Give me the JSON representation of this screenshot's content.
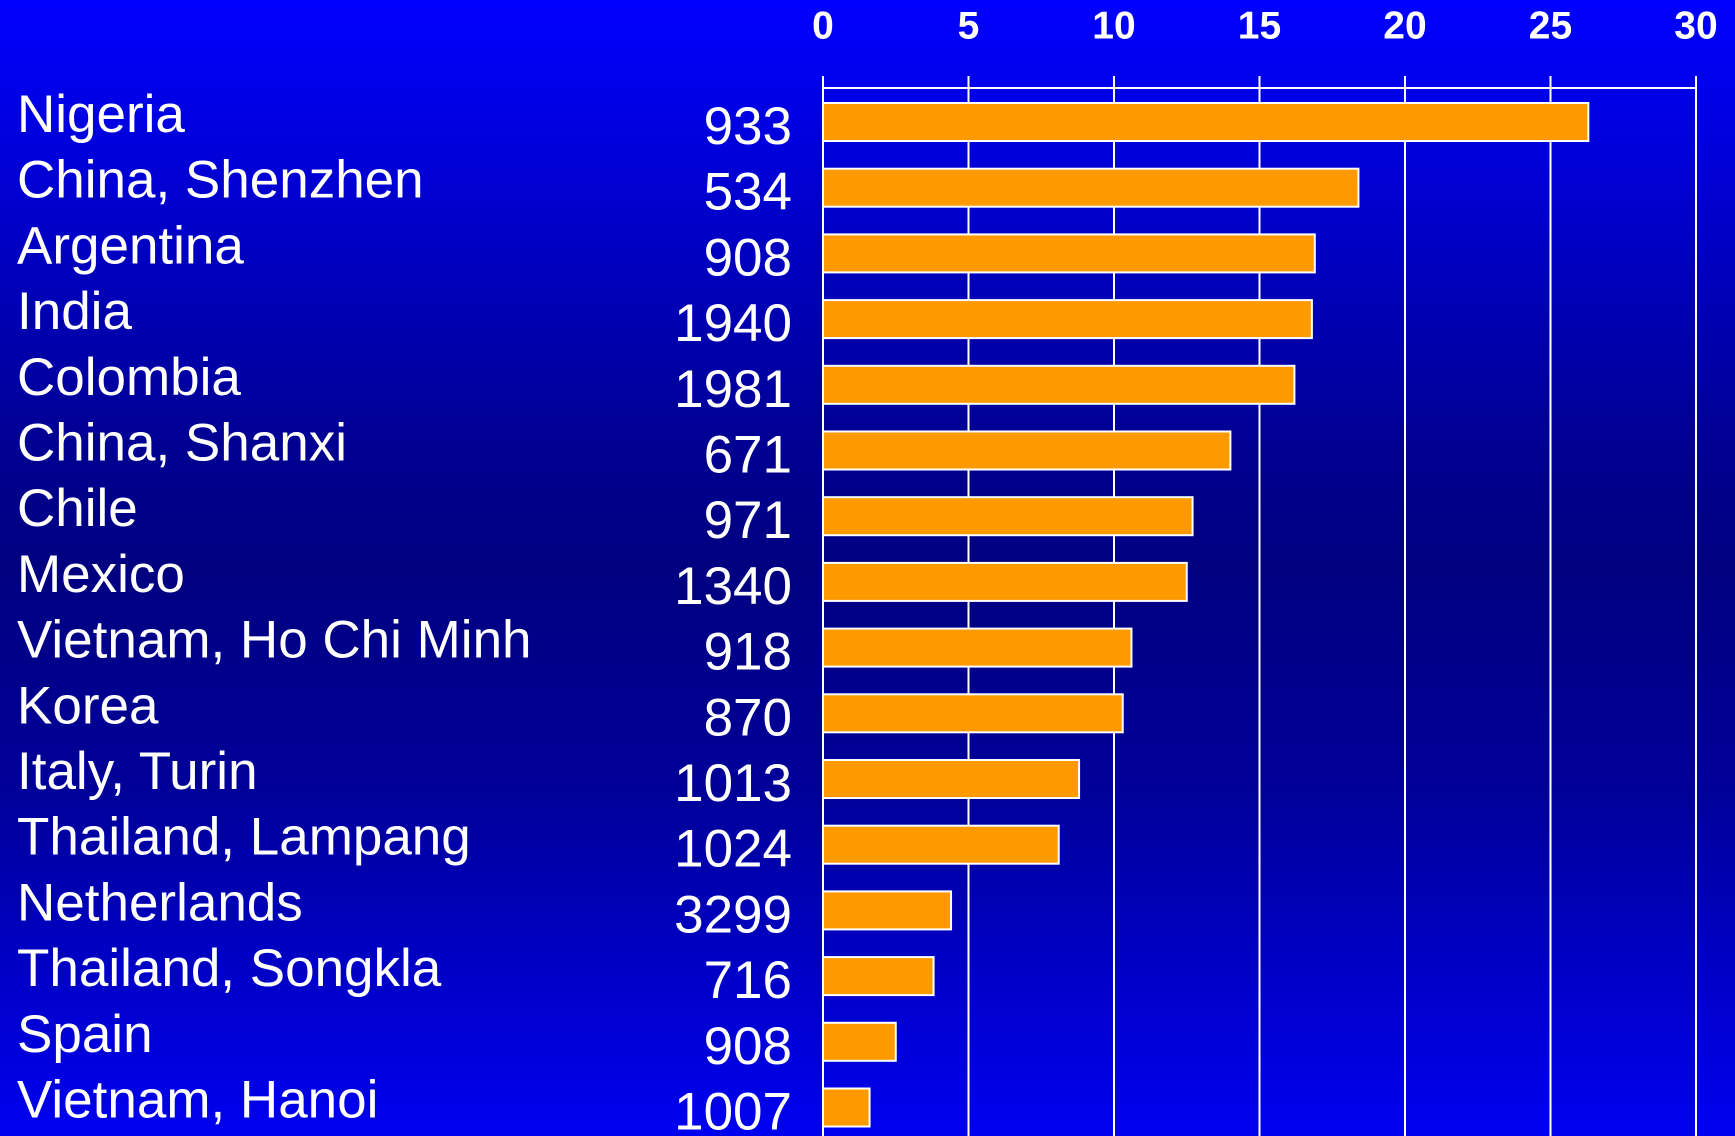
{
  "chart_data": {
    "type": "barh",
    "categories": [
      "Nigeria",
      "China, Shenzhen",
      "Argentina",
      "India",
      "Colombia",
      "China, Shanxi",
      "Chile",
      "Mexico",
      "Vietnam, Ho Chi Minh",
      "Korea",
      "Italy, Turin",
      "Thailand, Lampang",
      "Netherlands",
      "Thailand, Songkla",
      "Spain",
      "Vietnam, Hanoi"
    ],
    "sample_sizes": [
      933,
      534,
      908,
      1940,
      1981,
      671,
      971,
      1340,
      918,
      870,
      1013,
      1024,
      3299,
      716,
      908,
      1007
    ],
    "values": [
      26.3,
      18.4,
      16.9,
      16.8,
      16.2,
      14.0,
      12.7,
      12.5,
      10.6,
      10.3,
      8.8,
      8.1,
      4.4,
      3.8,
      2.5,
      1.6
    ],
    "color": "#ff9900",
    "xlim": [
      0,
      30
    ],
    "xticks": [
      0,
      5,
      10,
      15,
      20,
      25,
      30
    ],
    "grid": true
  }
}
